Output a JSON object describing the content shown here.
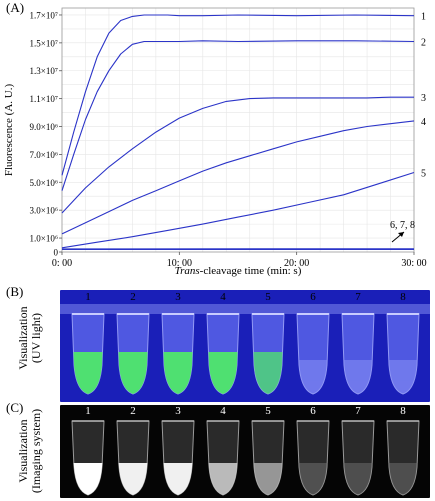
{
  "panels": {
    "a": "(A)",
    "b": "(B)",
    "c": "(C)"
  },
  "chart_data": {
    "type": "line",
    "xlabel_italic": "Trans",
    "xlabel_rest": "-cleavage time (min: s)",
    "ylabel": "Fluorescence (A. U.)",
    "xlim": [
      0,
      30
    ],
    "ylim": [
      0,
      17500000
    ],
    "x_ticks": [
      0,
      10,
      20,
      30
    ],
    "x_tick_labels": [
      "0: 00",
      "10: 00",
      "20: 00",
      "30: 00"
    ],
    "y_ticks": [
      0,
      1000000,
      3000000,
      5000000,
      7000000,
      9000000,
      11000000,
      13000000,
      15000000,
      17000000
    ],
    "y_tick_labels": [
      "0",
      "1.0×10⁶",
      "3.0×10⁶",
      "5.0×10⁶",
      "7.0×10⁶",
      "9.0×10⁶",
      "1.1×10⁷",
      "1.3×10⁷",
      "1.5×10⁷",
      "1.7×10⁷"
    ],
    "grid": true,
    "line_color": "#2b34c8",
    "series": [
      {
        "name": "1",
        "x": [
          0,
          1,
          2,
          3,
          4,
          5,
          6,
          7,
          8,
          9,
          10,
          12,
          15,
          20,
          25,
          30
        ],
        "values": [
          5500000,
          8600000,
          11500000,
          14000000,
          15700000,
          16600000,
          16900000,
          17000000,
          17000000,
          17000000,
          16950000,
          16950000,
          17000000,
          16950000,
          17000000,
          16950000
        ]
      },
      {
        "name": "2",
        "x": [
          0,
          1,
          2,
          3,
          4,
          5,
          6,
          7,
          8,
          9,
          10,
          12,
          15,
          20,
          25,
          30
        ],
        "values": [
          4400000,
          7000000,
          9500000,
          11500000,
          13000000,
          14200000,
          14900000,
          15100000,
          15100000,
          15100000,
          15100000,
          15150000,
          15100000,
          15150000,
          15150000,
          15100000
        ]
      },
      {
        "name": "3",
        "x": [
          0,
          2,
          4,
          6,
          8,
          10,
          12,
          14,
          16,
          18,
          20,
          22,
          24,
          26,
          28,
          30
        ],
        "values": [
          2800000,
          4600000,
          6100000,
          7400000,
          8600000,
          9600000,
          10300000,
          10800000,
          11000000,
          11050000,
          11050000,
          11050000,
          11050000,
          11050000,
          11100000,
          11100000
        ]
      },
      {
        "name": "4",
        "x": [
          0,
          2,
          4,
          6,
          8,
          10,
          12,
          14,
          16,
          18,
          20,
          22,
          24,
          26,
          28,
          30
        ],
        "values": [
          1300000,
          2100000,
          2900000,
          3700000,
          4400000,
          5100000,
          5800000,
          6400000,
          6900000,
          7400000,
          7900000,
          8300000,
          8700000,
          9000000,
          9200000,
          9400000
        ]
      },
      {
        "name": "5",
        "x": [
          0,
          3,
          6,
          9,
          12,
          15,
          18,
          21,
          24,
          27,
          30
        ],
        "values": [
          300000,
          700000,
          1100000,
          1550000,
          2000000,
          2500000,
          3000000,
          3550000,
          4100000,
          4900000,
          5700000
        ]
      },
      {
        "name": "6",
        "x": [
          0,
          30
        ],
        "values": [
          220000,
          230000
        ]
      },
      {
        "name": "7",
        "x": [
          0,
          30
        ],
        "values": [
          200000,
          210000
        ]
      },
      {
        "name": "8",
        "x": [
          0,
          30
        ],
        "values": [
          180000,
          190000
        ]
      }
    ],
    "end_labels": [
      "1",
      "2",
      "3",
      "4",
      "5"
    ],
    "annotation": "6, 7, 8"
  },
  "photos": {
    "b": {
      "side_label_line1": "Visualization",
      "side_label_line2": "(UV light)",
      "tube_numbers": [
        "1",
        "2",
        "3",
        "4",
        "5",
        "6",
        "7",
        "8"
      ],
      "background": "#1a1fb8",
      "positive_color": "#4fe86a",
      "negative_color": "#8a93f5"
    },
    "c": {
      "side_label_line1": "Visualization",
      "side_label_line2": "(Imaging system)",
      "tube_numbers": [
        "1",
        "2",
        "3",
        "4",
        "5",
        "6",
        "7",
        "8"
      ],
      "background": "#050505",
      "tube_intensity": [
        1.0,
        0.95,
        0.95,
        0.75,
        0.6,
        0.2,
        0.18,
        0.18
      ]
    }
  }
}
